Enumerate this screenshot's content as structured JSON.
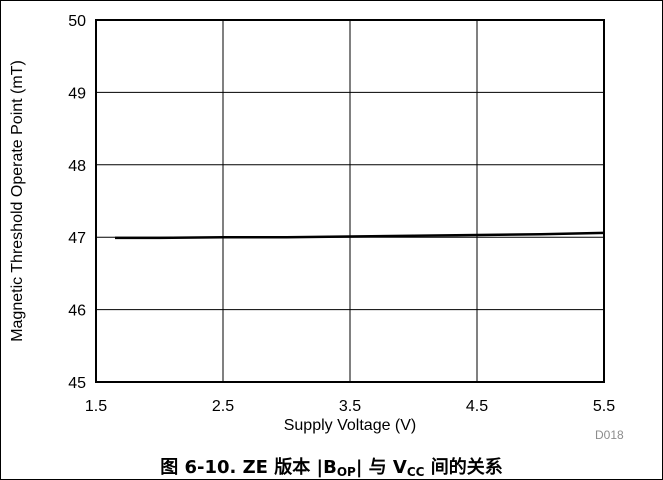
{
  "chart_data": {
    "type": "line",
    "title": "",
    "xlabel": "Supply Voltage (V)",
    "ylabel": "Magnetic Threshold Operate Point (mT)",
    "xlim": [
      1.5,
      5.5
    ],
    "ylim": [
      45,
      50
    ],
    "xticks": [
      "1.5",
      "2.5",
      "3.5",
      "4.5",
      "5.5"
    ],
    "yticks": [
      "45",
      "46",
      "47",
      "48",
      "49",
      "50"
    ],
    "grid": true,
    "series": [
      {
        "color": "#000000",
        "x": [
          1.65,
          2.0,
          2.5,
          3.0,
          3.5,
          4.0,
          4.5,
          5.0,
          5.5
        ],
        "y": [
          46.99,
          46.99,
          47.0,
          47.0,
          47.01,
          47.02,
          47.03,
          47.04,
          47.06
        ]
      }
    ]
  },
  "caption": {
    "prefix": "图 6-10. ZE 版本 |B",
    "sub1": "OP",
    "mid": "| 与 V",
    "sub2": "CC",
    "suffix": " 间的关系"
  },
  "figure_id": "D018"
}
